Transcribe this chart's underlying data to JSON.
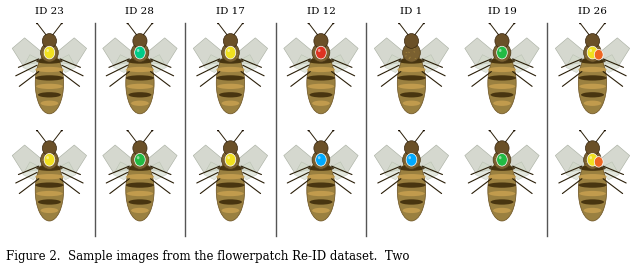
{
  "figure_caption": "Figure 2.  Sample images from the flowerpatch Re-ID dataset.  Two",
  "ids": [
    "ID 23",
    "ID 28",
    "ID 17",
    "ID 12",
    "ID 1",
    "ID 19",
    "ID 26"
  ],
  "n_cols": 7,
  "n_rows": 2,
  "bg_color": "#ffffff",
  "caption_fontsize": 8.5,
  "id_fontsize": 7.5,
  "fig_width": 6.4,
  "fig_height": 2.71,
  "bg_colors_top": [
    "#3a9ec8",
    "#e8f0f0",
    "#2a8aaa",
    "#2a8aaa",
    "#2a8aaa",
    "#2a8aaa",
    "#e0ecec"
  ],
  "bg_colors_bot": [
    "#e8f0f0",
    "#3a9ec8",
    "#3a9ec8",
    "#2a8aaa",
    "#e8f0f0",
    "#2a8aaa",
    "#3a9ec8"
  ],
  "dot_colors_row0": [
    "#f0e020",
    "#00cc88",
    "#f0e020",
    "#dd3322",
    "none",
    "#22bb44",
    "#f0e020"
  ],
  "dot_colors_row1": [
    "#f0e020",
    "#22bb44",
    "#f0e020",
    "#00aaff",
    "#00aaff",
    "#22bb44",
    "#f0e020"
  ],
  "dot2_colors_row0": [
    "none",
    "none",
    "none",
    "none",
    "none",
    "none",
    "#ee6622"
  ],
  "dot2_colors_row1": [
    "none",
    "none",
    "none",
    "none",
    "none",
    "none",
    "#ee6622"
  ],
  "separators_after": [
    0,
    1,
    2,
    3,
    5
  ]
}
